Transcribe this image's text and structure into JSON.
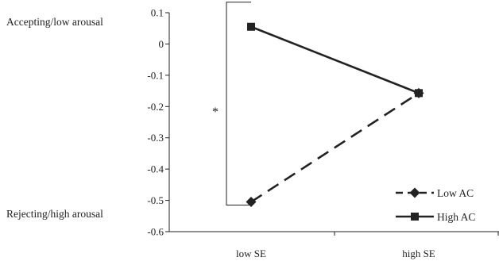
{
  "chart_data": {
    "type": "line",
    "categories": [
      "low SE",
      "high SE"
    ],
    "series": [
      {
        "name": "Low AC",
        "values": [
          -0.505,
          -0.157
        ],
        "dash": true,
        "marker": "diamond"
      },
      {
        "name": "High AC",
        "values": [
          0.055,
          -0.157
        ],
        "dash": false,
        "marker": "square"
      }
    ],
    "ylim": [
      -0.6,
      0.1
    ],
    "yticks": [
      0.1,
      0,
      -0.1,
      -0.2,
      -0.3,
      -0.4,
      -0.5,
      -0.6
    ],
    "ytick_labels": [
      "0.1",
      "0",
      "-0.1",
      "-0.2",
      "-0.3",
      "-0.4",
      "-0.5",
      "-0.6"
    ],
    "side_labels": {
      "top": "Accepting/low arousal",
      "bottom": "Rejecting/high arousal"
    },
    "annotation": "*",
    "legend_position": "bottom-right",
    "grid": false,
    "line_color": "#222222"
  }
}
